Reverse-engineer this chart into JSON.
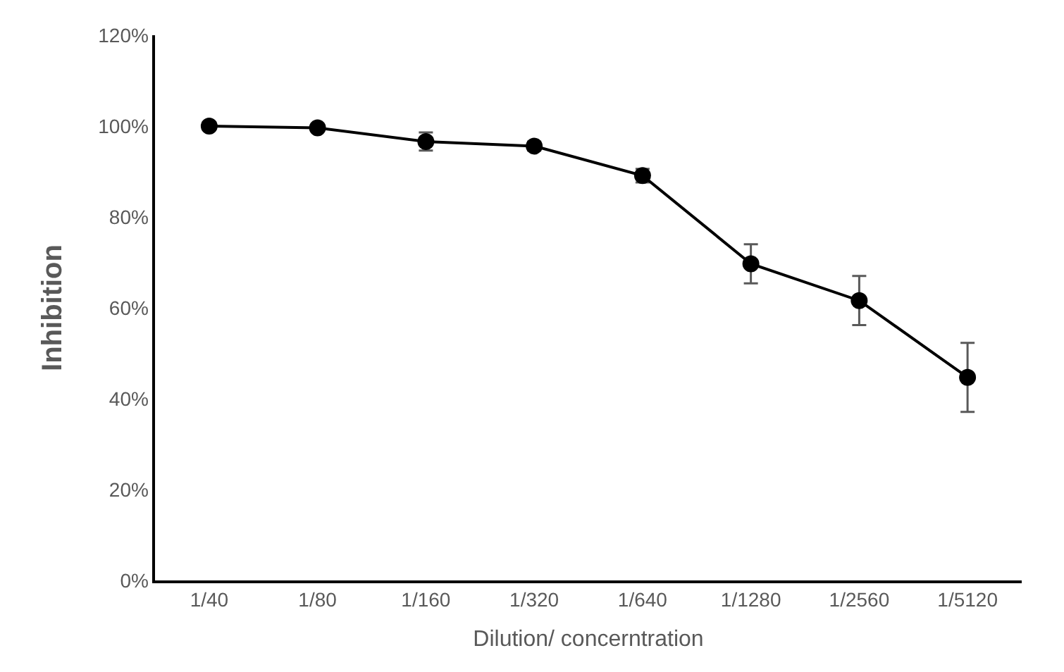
{
  "chart_data": {
    "type": "line",
    "xlabel": "Dilution/ concerntration",
    "ylabel": "Inhibition",
    "categories": [
      "1/40",
      "1/80",
      "1/160",
      "1/320",
      "1/640",
      "1/1280",
      "1/2560",
      "1/5120"
    ],
    "series": [
      {
        "color": "#000000",
        "values": [
          100,
          99.6,
          96.6,
          95.6,
          89.1,
          69.7,
          61.6,
          44.7
        ],
        "errors": [
          0.5,
          0.5,
          2,
          1,
          1.5,
          4.3,
          5.4,
          7.6
        ]
      }
    ],
    "ylim": [
      0,
      120
    ],
    "yticks": [
      {
        "value": 0,
        "label": "0%"
      },
      {
        "value": 20,
        "label": "20%"
      },
      {
        "value": 40,
        "label": "40%"
      },
      {
        "value": 60,
        "label": "60%"
      },
      {
        "value": 80,
        "label": "80%"
      },
      {
        "value": 100,
        "label": "100%"
      },
      {
        "value": 120,
        "label": "120%"
      }
    ],
    "legend": false,
    "marker": "circle",
    "line_style": "solid"
  }
}
